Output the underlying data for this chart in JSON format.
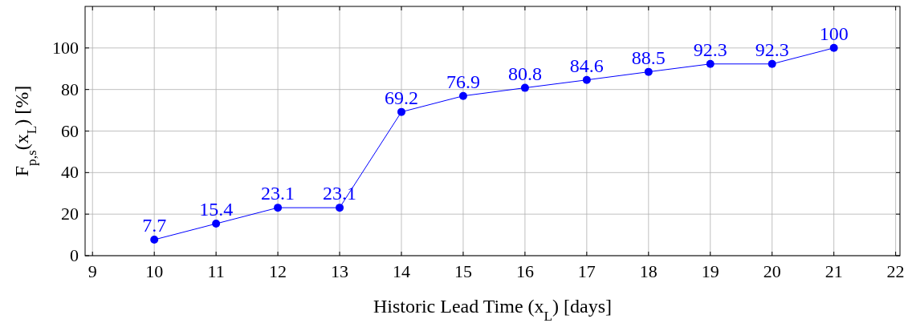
{
  "chart_data": {
    "type": "line",
    "xlabel": "Historic Lead Time (x$_{L}$) [days]",
    "ylabel": "F$_{p,s}$(x$_{L}$) [%]",
    "x": [
      10,
      11,
      12,
      13,
      14,
      15,
      16,
      17,
      18,
      19,
      20,
      21
    ],
    "series": [
      {
        "color": "#0000ff",
        "values": [
          7.7,
          15.4,
          23.1,
          23.1,
          69.2,
          76.9,
          80.8,
          84.6,
          88.5,
          92.3,
          92.3,
          100
        ]
      }
    ],
    "xlim": [
      8.88,
      22.07
    ],
    "xticks": [
      9,
      10,
      11,
      12,
      13,
      14,
      15,
      16,
      17,
      18,
      19,
      20,
      21,
      22
    ],
    "ylim": [
      0,
      120
    ],
    "yticks": [
      0,
      20,
      40,
      60,
      80,
      100
    ],
    "grid": true,
    "marker": "circle",
    "line_style": "solid",
    "data_labels": true
  }
}
